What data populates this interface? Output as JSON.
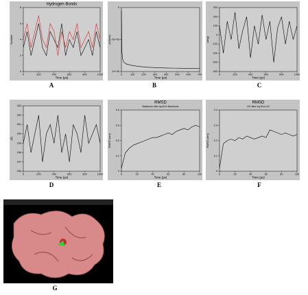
{
  "chart_data": [
    {
      "type": "line",
      "panel_label": "A",
      "title": "Hydrogen Bonds",
      "x_label": "Time (ps)",
      "y_label": "Number",
      "x": [
        0,
        50,
        100,
        150,
        200,
        250,
        300,
        350,
        400,
        450,
        500,
        550,
        600,
        650,
        700,
        750,
        800,
        850,
        900,
        950,
        1000
      ],
      "series": [
        {
          "color": "#000000",
          "values": [
            3,
            5,
            2,
            4,
            6,
            3,
            2,
            5,
            4,
            3,
            6,
            2,
            4,
            3,
            5,
            2,
            3,
            4,
            2,
            5,
            3
          ]
        },
        {
          "color": "#e02020",
          "values": [
            4,
            6,
            3,
            5,
            7,
            4,
            3,
            6,
            5,
            2,
            5,
            3,
            5,
            4,
            6,
            3,
            4,
            5,
            3,
            6,
            4
          ]
        }
      ],
      "xlim": [
        0,
        1000
      ],
      "xticks": [
        0,
        200,
        400,
        600,
        800,
        1000
      ],
      "ylim": [
        0,
        8
      ],
      "yticks": [
        0,
        2,
        4,
        6,
        8
      ]
    },
    {
      "type": "line",
      "panel_label": "B",
      "x_label": "Time (ps)",
      "y_label": "(kJ/mol)",
      "x": [
        0,
        5,
        10,
        20,
        40,
        80,
        150,
        250,
        400,
        550,
        700
      ],
      "series": [
        {
          "color": "#000000",
          "values": [
            -50000,
            -700000,
            -800000,
            -850000,
            -880000,
            -900000,
            -920000,
            -935000,
            -945000,
            -950000,
            -955000
          ]
        }
      ],
      "xlim": [
        0,
        700
      ],
      "xticks": [
        0,
        100,
        200,
        300,
        400,
        500,
        600,
        700
      ],
      "ylim": [
        -1000000,
        0
      ],
      "yticks": [
        {
          "value": -1000000,
          "label": "-1e+06"
        },
        {
          "value": -500000,
          "label": "-5e+05"
        },
        0
      ]
    },
    {
      "type": "line",
      "panel_label": "C",
      "x_label": "Time (ps)",
      "y_label": "(deg)",
      "x": [
        0,
        50,
        100,
        150,
        200,
        250,
        300,
        350,
        400,
        450,
        500,
        550,
        600,
        650,
        700,
        750,
        800,
        850,
        900,
        950,
        1000
      ],
      "series": [
        {
          "color": "#000000",
          "values": [
            100,
            -200,
            150,
            -50,
            250,
            -150,
            50,
            200,
            -250,
            100,
            -100,
            220,
            -50,
            150,
            -300,
            80,
            200,
            -100,
            150,
            -50,
            100
          ]
        }
      ],
      "xlim": [
        0,
        1000
      ],
      "xticks": [
        0,
        200,
        400,
        600,
        800,
        1000
      ],
      "ylim": [
        -400,
        300
      ],
      "yticks": [
        -400,
        -300,
        -200,
        -100,
        0,
        100,
        200,
        300
      ]
    },
    {
      "type": "line",
      "panel_label": "D",
      "x_label": "Time (ps)",
      "y_label": "(Å)",
      "x": [
        0,
        50,
        100,
        150,
        200,
        250,
        300,
        350,
        400,
        450,
        500,
        550,
        600,
        650,
        700,
        750,
        800,
        850,
        900,
        950,
        1000
      ],
      "series": [
        {
          "color": "#000000",
          "values": [
            299,
            301,
            298,
            300,
            302,
            297,
            300,
            301,
            299,
            302,
            298,
            300,
            297,
            301,
            300,
            298,
            302,
            299,
            300,
            301,
            299
          ]
        }
      ],
      "xlim": [
        0,
        1000
      ],
      "xticks": [
        0,
        200,
        400,
        600,
        800,
        1000
      ],
      "ylim": [
        296,
        303
      ],
      "yticks": [
        296,
        297,
        298,
        299,
        300,
        301,
        302,
        303
      ]
    },
    {
      "type": "line",
      "panel_label": "E",
      "title": "RMSD",
      "subtitle": "Backbone after lsq fit to Backbone",
      "x_label": "Time (ps)",
      "y_label": "RMSD (nm)",
      "x": [
        0,
        5,
        10,
        15,
        20,
        25,
        30,
        35,
        40,
        45,
        50,
        55,
        60,
        65,
        70,
        75,
        80,
        85,
        90,
        95,
        100
      ],
      "series": [
        {
          "color": "#000000",
          "values": [
            0.02,
            0.12,
            0.15,
            0.17,
            0.18,
            0.19,
            0.2,
            0.21,
            0.22,
            0.22,
            0.23,
            0.24,
            0.25,
            0.24,
            0.26,
            0.27,
            0.28,
            0.27,
            0.29,
            0.3,
            0.29
          ]
        }
      ],
      "xlim": [
        0,
        100
      ],
      "xticks": [
        0,
        20,
        40,
        60,
        80,
        100
      ],
      "ylim": [
        0,
        0.4
      ],
      "yticks": [
        0,
        0.1,
        0.2,
        0.3,
        0.4
      ]
    },
    {
      "type": "line",
      "panel_label": "F",
      "title": "RMSD",
      "subtitle": "LIG after lsq fit to LIG",
      "x_label": "Time (ps)",
      "y_label": "RMSD (nm)",
      "x": [
        0,
        5,
        10,
        15,
        20,
        25,
        30,
        35,
        40,
        45,
        50,
        55,
        60,
        65,
        70,
        75,
        80,
        85,
        90,
        95,
        100
      ],
      "series": [
        {
          "color": "#000000",
          "values": [
            0.02,
            0.18,
            0.2,
            0.21,
            0.2,
            0.22,
            0.21,
            0.23,
            0.22,
            0.21,
            0.22,
            0.23,
            0.22,
            0.27,
            0.26,
            0.25,
            0.24,
            0.25,
            0.24,
            0.23,
            0.24
          ]
        }
      ],
      "xlim": [
        0,
        100
      ],
      "xticks": [
        0,
        20,
        40,
        60,
        80,
        100
      ],
      "ylim": [
        0,
        0.4
      ],
      "yticks": [
        0,
        0.1,
        0.2,
        0.3,
        0.4
      ]
    }
  ],
  "image_panel": {
    "panel_label": "G"
  }
}
